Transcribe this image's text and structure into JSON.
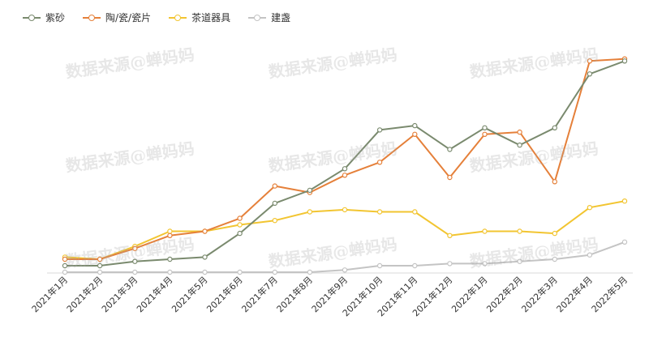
{
  "watermark": "数据来源@蝉妈妈",
  "chart_data": {
    "type": "line",
    "title": "",
    "xlabel": "",
    "ylabel": "",
    "ylim": [
      0,
      100
    ],
    "grid": false,
    "legend_position": "top-left",
    "categories": [
      "2021年1月",
      "2021年2月",
      "2021年3月",
      "2021年4月",
      "2021年5月",
      "2021年6月",
      "2021年7月",
      "2021年8月",
      "2021年9月",
      "2021年10月",
      "2021年11月",
      "2021年12月",
      "2022年1月",
      "2022年2月",
      "2022年3月",
      "2022年4月",
      "2022年5月"
    ],
    "series": [
      {
        "name": "紫砂",
        "color": "#7a8a6e",
        "values": [
          3,
          3,
          5,
          6,
          7,
          18,
          32,
          38,
          48,
          66,
          68,
          57,
          67,
          59,
          67,
          92,
          98
        ]
      },
      {
        "name": "陶/瓷/瓷片",
        "color": "#e5803a",
        "values": [
          6,
          6,
          11,
          17,
          19,
          25,
          40,
          37,
          45,
          51,
          64,
          44,
          64,
          65,
          42,
          98,
          99
        ]
      },
      {
        "name": "茶道器具",
        "color": "#f2c531",
        "values": [
          7,
          6,
          12,
          19,
          19,
          22,
          24,
          28,
          29,
          28,
          28,
          17,
          19,
          19,
          18,
          30,
          33
        ]
      },
      {
        "name": "建盏",
        "color": "#c4c4c4",
        "values": [
          0,
          0,
          0,
          0,
          0,
          0,
          0,
          0,
          1,
          3,
          3,
          4,
          4,
          5,
          6,
          8,
          14
        ]
      }
    ]
  }
}
